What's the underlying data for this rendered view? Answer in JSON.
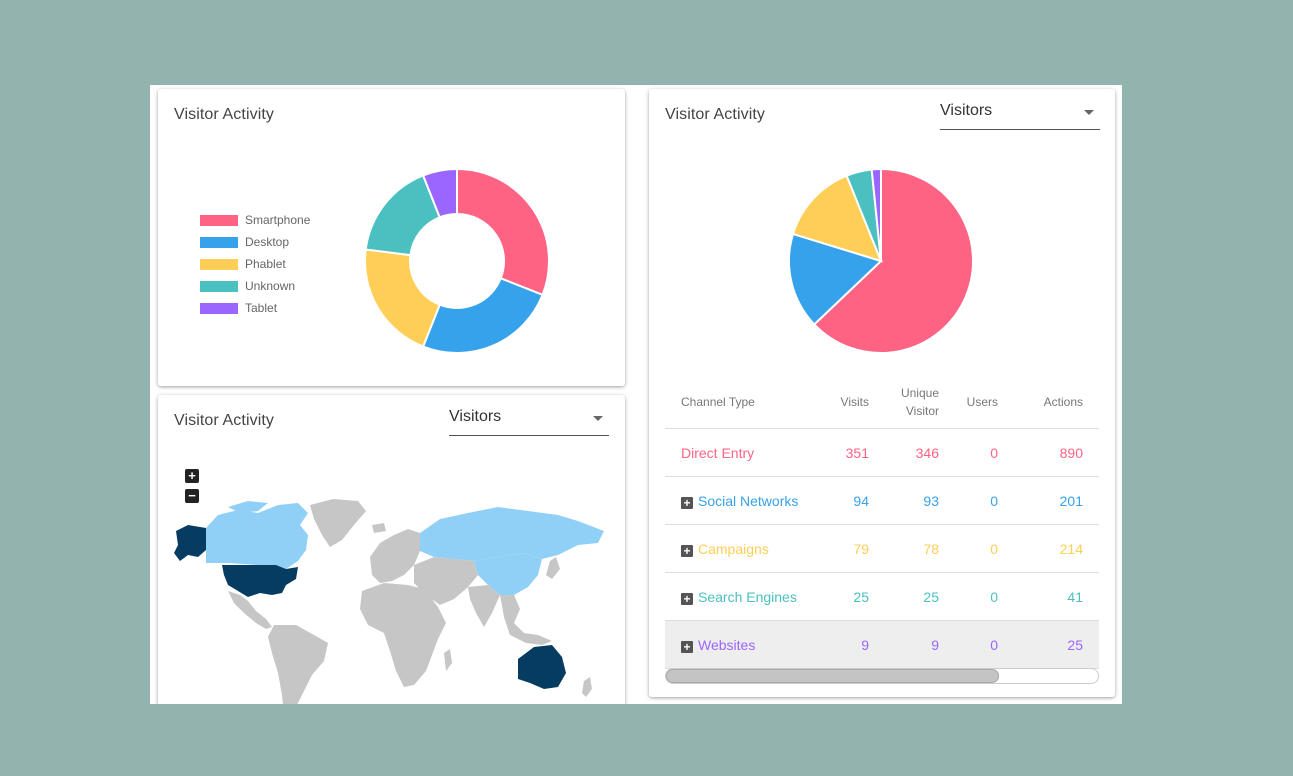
{
  "card1": {
    "title": "Visitor Activity",
    "legend": [
      {
        "label": "Smartphone",
        "color": "#ff6384"
      },
      {
        "label": "Desktop",
        "color": "#36a2eb"
      },
      {
        "label": "Phablet",
        "color": "#ffce56"
      },
      {
        "label": "Unknown",
        "color": "#4bc0c0"
      },
      {
        "label": "Tablet",
        "color": "#9966ff"
      }
    ]
  },
  "card2": {
    "title": "Visitor Activity",
    "select_value": "Visitors",
    "zoom_in": "+",
    "zoom_out": "−",
    "map_colors": {
      "land": "#c6c6c6",
      "light": "#90d0f7",
      "dark": "#063b62"
    }
  },
  "card3": {
    "title": "Visitor Activity",
    "select_value": "Visitors",
    "table": {
      "headers": {
        "channel": "Channel Type",
        "visits": "Visits",
        "unique_line1": "Unique",
        "unique_line2": "Visitor",
        "users": "Users",
        "actions": "Actions"
      },
      "rows": [
        {
          "name": "Direct Entry",
          "visits": "351",
          "unique": "346",
          "users": "0",
          "actions": "890",
          "color": "#ff6384",
          "expandable": false
        },
        {
          "name": "Social Networks",
          "visits": "94",
          "unique": "93",
          "users": "0",
          "actions": "201",
          "color": "#36a2eb",
          "expandable": true
        },
        {
          "name": "Campaigns",
          "visits": "79",
          "unique": "78",
          "users": "0",
          "actions": "214",
          "color": "#ffce56",
          "expandable": true
        },
        {
          "name": "Search Engines",
          "visits": "25",
          "unique": "25",
          "users": "0",
          "actions": "41",
          "color": "#4bc0c0",
          "expandable": true
        },
        {
          "name": "Websites",
          "visits": "9",
          "unique": "9",
          "users": "0",
          "actions": "25",
          "color": "#9966ff",
          "expandable": true
        }
      ]
    },
    "scroll_fraction": 0.77
  },
  "chart_data": [
    {
      "type": "pie",
      "variant": "doughnut",
      "categories": [
        "Smartphone",
        "Desktop",
        "Phablet",
        "Unknown",
        "Tablet"
      ],
      "values": [
        31,
        25,
        21,
        17,
        6
      ],
      "colors": [
        "#ff6384",
        "#36a2eb",
        "#ffce56",
        "#4bc0c0",
        "#9966ff"
      ],
      "legend": "left"
    },
    {
      "type": "pie",
      "categories": [
        "Direct Entry",
        "Social Networks",
        "Campaigns",
        "Search Engines",
        "Websites"
      ],
      "values": [
        351,
        94,
        79,
        25,
        9
      ],
      "colors": [
        "#ff6384",
        "#36a2eb",
        "#ffce56",
        "#4bc0c0",
        "#9966ff"
      ]
    }
  ]
}
